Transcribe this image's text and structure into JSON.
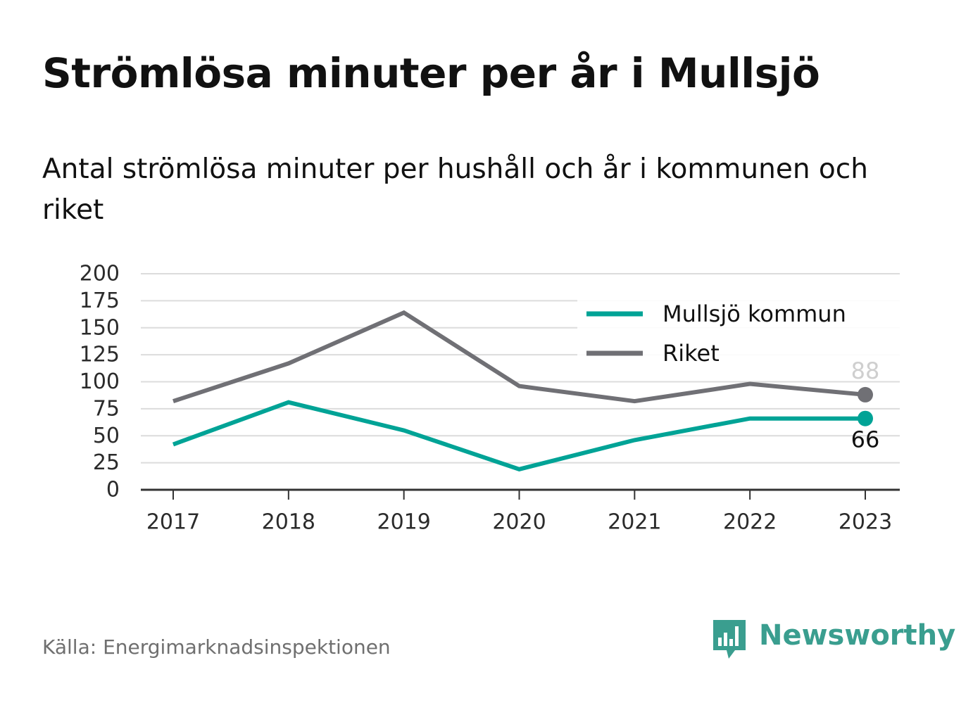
{
  "header": {
    "title": "Strömlösa minuter per år i Mullsjö",
    "subtitle": "Antal strömlösa minuter per hushåll och år i kommunen och riket"
  },
  "footer": {
    "source": "Källa: Energimarknadsinspektionen",
    "brand": "Newsworthy",
    "brand_icon": "bar-chart-speech-bubble-icon"
  },
  "colors": {
    "mullsjo": "#00a396",
    "riket": "#707075",
    "grid": "#dcdcdc",
    "axis": "#333333",
    "brand": "#3a9e8f"
  },
  "chart_data": {
    "type": "line",
    "categories": [
      "2017",
      "2018",
      "2019",
      "2020",
      "2021",
      "2022",
      "2023"
    ],
    "series": [
      {
        "name": "Mullsjö kommun",
        "color": "#00a396",
        "values": [
          42,
          81,
          55,
          19,
          46,
          66,
          66
        ],
        "end_label": "66"
      },
      {
        "name": "Riket",
        "color": "#707075",
        "values": [
          82,
          117,
          164,
          96,
          82,
          98,
          88
        ],
        "end_label": "88"
      }
    ],
    "ylim": [
      0,
      200
    ],
    "yticks": [
      "0",
      "25",
      "50",
      "75",
      "100",
      "125",
      "150",
      "175",
      "200"
    ],
    "grid": true,
    "legend": "top-right",
    "xlabel": "",
    "ylabel": ""
  }
}
